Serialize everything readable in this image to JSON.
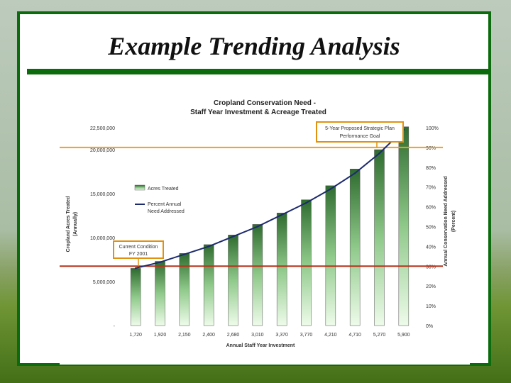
{
  "slide": {
    "title": "Example Trending Analysis"
  },
  "chart_data": {
    "type": "bar",
    "title": "Cropland Conservation Need -",
    "subtitle": "Staff Year Investment & Acreage Treated",
    "xlabel": "Annual Staff Year Investment",
    "ylabel_left_1": "Cropland Acres Treated",
    "ylabel_left_2": "(Annually)",
    "ylabel_right_1": "Annual Conservation Need Addressed",
    "ylabel_right_2": "(Percent)",
    "categories": [
      "1,720",
      "1,920",
      "2,150",
      "2,400",
      "2,680",
      "3,010",
      "3,370",
      "3,770",
      "4,210",
      "4,710",
      "5,270",
      "5,900"
    ],
    "series": [
      {
        "name": "Acres Treated",
        "values": [
          6500000,
          7300000,
          8200000,
          9200000,
          10300000,
          11500000,
          12800000,
          14300000,
          15900000,
          17800000,
          20000000,
          22600000
        ]
      },
      {
        "name": "Percent Annual Need Addressed",
        "axis": "right",
        "values": [
          29,
          32,
          36,
          40,
          45,
          50,
          56,
          62,
          69,
          77,
          87,
          99
        ]
      }
    ],
    "left_ticks": [
      "-",
      "5,000,000",
      "10,000,000",
      "15,000,000",
      "20,000,000",
      "22,500,000"
    ],
    "left_tick_values": [
      0,
      5000000,
      10000000,
      15000000,
      20000000,
      22500000
    ],
    "right_ticks": [
      "0%",
      "10%",
      "20%",
      "30%",
      "40%",
      "50%",
      "60%",
      "70%",
      "80%",
      "90%",
      "100%"
    ],
    "ylim_left": [
      0,
      22500000
    ],
    "ylim_right": [
      0,
      100
    ],
    "legend_position": "middle-left",
    "annotations": {
      "goal": "5-Year Proposed Strategic Plan Performance Goal",
      "goal_line1": "5-Year Proposed Strategic Plan",
      "goal_line2": "Performance Goal",
      "goal_level_percent": 90,
      "current": "Current Condition FY 2001",
      "current_line1": "Current Condition",
      "current_line2": "FY 2001",
      "current_level_percent": 30
    },
    "colors": {
      "bar_top": "#2e6b2e",
      "bar_bottom": "#eaf9e6",
      "line": "#1c2a6e",
      "goal_line": "#f2a014",
      "current_line": "#b8331a",
      "annotation_border": "#e0920f",
      "frame": "#0c6b0c"
    }
  }
}
